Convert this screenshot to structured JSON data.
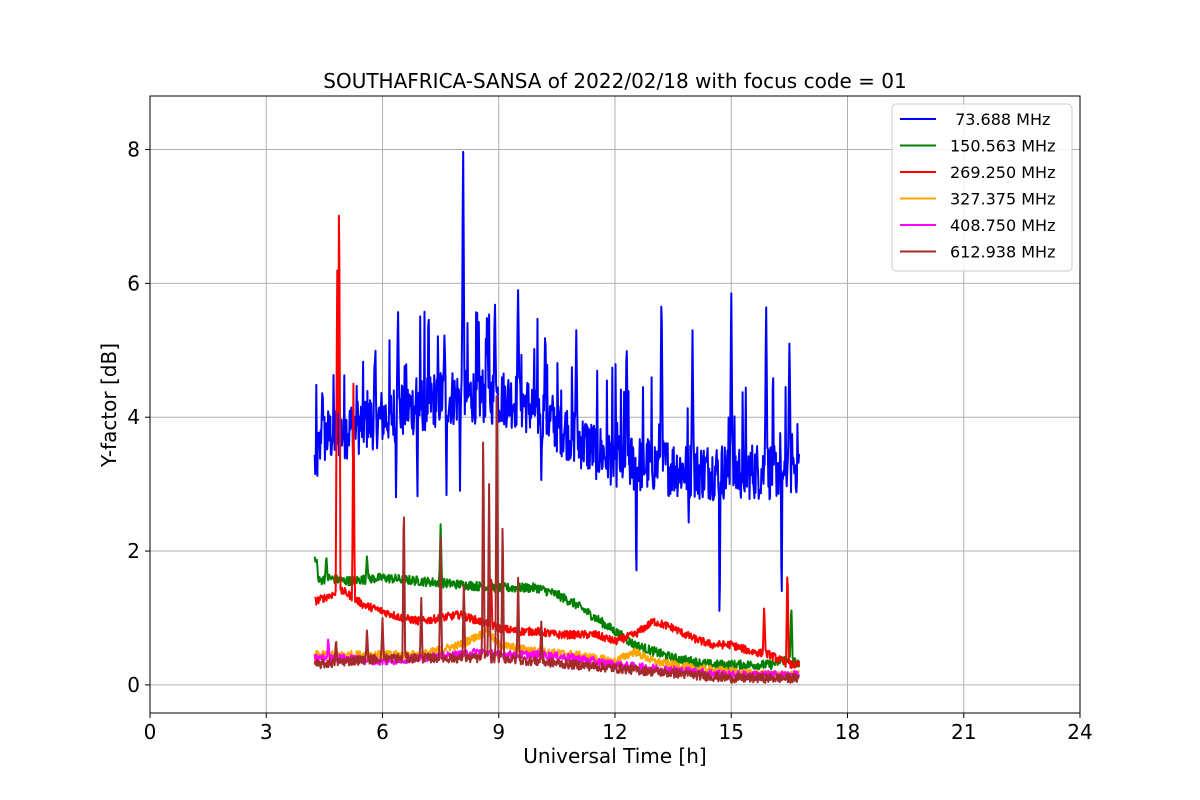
{
  "chart_data": {
    "type": "line",
    "title": "SOUTHAFRICA-SANSA of 2022/02/18 with focus code = 01",
    "xlabel": "Universal Time [h]",
    "ylabel": "Y-factor [dB]",
    "xlim": [
      0,
      24
    ],
    "ylim": [
      -0.42,
      8.8
    ],
    "xticks": [
      0,
      3,
      6,
      9,
      12,
      15,
      18,
      21,
      24
    ],
    "xtick_labels": [
      "0",
      "3",
      "6",
      "9",
      "12",
      "15",
      "18",
      "21",
      "24"
    ],
    "yticks": [
      0,
      2,
      4,
      6,
      8
    ],
    "ytick_labels": [
      "0",
      "2",
      "4",
      "6",
      "8"
    ],
    "grid": true,
    "legend_position": "top-right",
    "series": [
      {
        "name": " 73.688 MHz",
        "color": "#0000ff",
        "x": [
          4.25,
          4.5,
          5.0,
          5.5,
          6.0,
          6.5,
          7.0,
          7.5,
          8.0,
          8.5,
          9.0,
          9.5,
          10.0,
          10.5,
          11.0,
          11.5,
          12.0,
          12.5,
          13.0,
          13.5,
          14.0,
          14.5,
          15.0,
          15.5,
          16.0,
          16.5,
          16.75
        ],
        "y": [
          3.3,
          3.7,
          3.8,
          3.9,
          4.0,
          4.1,
          4.2,
          4.3,
          4.3,
          4.35,
          4.3,
          4.25,
          4.1,
          3.9,
          3.7,
          3.5,
          3.4,
          3.3,
          3.3,
          3.25,
          3.2,
          3.2,
          3.2,
          3.2,
          3.2,
          3.25,
          3.3
        ],
        "spikes": [
          [
            4.45,
            4.5
          ],
          [
            5.8,
            5.0
          ],
          [
            6.4,
            5.7
          ],
          [
            6.9,
            5.6
          ],
          [
            7.6,
            5.3
          ],
          [
            8.08,
            8.35
          ],
          [
            8.7,
            5.7
          ],
          [
            8.9,
            5.8
          ],
          [
            9.5,
            5.9
          ],
          [
            10.2,
            5.4
          ],
          [
            11.0,
            5.3
          ],
          [
            12.3,
            5.3
          ],
          [
            13.2,
            6.1
          ],
          [
            14.0,
            5.3
          ],
          [
            15.0,
            5.85
          ],
          [
            15.9,
            5.85
          ],
          [
            16.5,
            5.1
          ]
        ],
        "dips": [
          [
            6.35,
            2.6
          ],
          [
            6.9,
            2.6
          ],
          [
            7.65,
            2.6
          ],
          [
            8.0,
            2.9
          ],
          [
            10.1,
            2.9
          ],
          [
            12.55,
            1.1
          ],
          [
            13.9,
            2.3
          ],
          [
            14.7,
            0.3
          ],
          [
            16.3,
            0.7
          ]
        ]
      },
      {
        "name": "150.563 MHz",
        "color": "#008000",
        "x": [
          4.25,
          4.35,
          4.6,
          5.0,
          6.0,
          7.0,
          8.0,
          9.0,
          10.0,
          10.5,
          11.0,
          11.5,
          12.0,
          12.5,
          13.0,
          13.5,
          14.0,
          14.5,
          15.0,
          15.5,
          16.0,
          16.5,
          16.75
        ],
        "y": [
          1.9,
          1.55,
          1.6,
          1.55,
          1.6,
          1.55,
          1.5,
          1.45,
          1.45,
          1.35,
          1.2,
          1.0,
          0.8,
          0.6,
          0.5,
          0.4,
          0.35,
          0.3,
          0.3,
          0.3,
          0.3,
          0.4,
          0.3
        ],
        "spikes": [
          [
            4.3,
            1.9
          ],
          [
            4.55,
            1.95
          ],
          [
            5.6,
            1.95
          ],
          [
            7.5,
            2.4
          ],
          [
            16.55,
            1.25
          ]
        ],
        "dips": []
      },
      {
        "name": "269.250 MHz",
        "color": "#ff0000",
        "x": [
          4.25,
          4.5,
          4.7,
          5.0,
          5.5,
          6.0,
          6.5,
          7.0,
          7.5,
          8.0,
          8.5,
          9.0,
          9.5,
          10.0,
          10.5,
          11.0,
          11.5,
          12.0,
          12.5,
          13.0,
          13.5,
          14.0,
          14.5,
          15.0,
          15.5,
          16.0,
          16.5,
          16.75
        ],
        "y": [
          1.25,
          1.3,
          1.35,
          1.4,
          1.2,
          1.1,
          1.0,
          0.95,
          1.0,
          1.05,
          0.95,
          0.85,
          0.8,
          0.8,
          0.75,
          0.75,
          0.75,
          0.65,
          0.75,
          0.95,
          0.85,
          0.7,
          0.6,
          0.6,
          0.5,
          0.45,
          0.3,
          0.3
        ],
        "spikes": [
          [
            4.83,
            6.7
          ],
          [
            4.88,
            7.95
          ],
          [
            5.25,
            4.5
          ],
          [
            8.8,
            1.7
          ],
          [
            15.85,
            1.2
          ],
          [
            16.45,
            1.85
          ]
        ],
        "dips": []
      },
      {
        "name": "327.375 MHz",
        "color": "#ffa500",
        "x": [
          4.25,
          5.0,
          6.0,
          7.0,
          8.0,
          8.7,
          9.0,
          10.0,
          11.0,
          12.0,
          12.5,
          13.0,
          13.5,
          14.0,
          15.0,
          16.0,
          16.75
        ],
        "y": [
          0.45,
          0.45,
          0.45,
          0.45,
          0.6,
          0.8,
          0.6,
          0.5,
          0.45,
          0.35,
          0.5,
          0.35,
          0.3,
          0.25,
          0.2,
          0.15,
          0.15
        ],
        "spikes": [
          [
            8.7,
            0.85
          ]
        ],
        "dips": []
      },
      {
        "name": "408.750 MHz",
        "color": "#ff00ff",
        "x": [
          4.25,
          5.0,
          6.0,
          7.0,
          8.0,
          8.5,
          9.0,
          10.0,
          11.0,
          12.0,
          13.0,
          14.0,
          15.0,
          16.0,
          16.75
        ],
        "y": [
          0.4,
          0.4,
          0.35,
          0.4,
          0.45,
          0.5,
          0.45,
          0.45,
          0.4,
          0.3,
          0.25,
          0.2,
          0.15,
          0.15,
          0.15
        ],
        "spikes": [
          [
            4.6,
            0.7
          ]
        ],
        "dips": []
      },
      {
        "name": "612.938 MHz",
        "color": "#a52a2a",
        "x": [
          4.25,
          5.0,
          6.0,
          7.0,
          8.0,
          9.0,
          10.0,
          11.0,
          12.0,
          13.0,
          14.0,
          15.0,
          16.0,
          16.75
        ],
        "y": [
          0.3,
          0.35,
          0.4,
          0.4,
          0.4,
          0.4,
          0.35,
          0.3,
          0.25,
          0.2,
          0.15,
          0.1,
          0.1,
          0.1
        ],
        "spikes": [
          [
            4.8,
            0.7
          ],
          [
            5.6,
            0.85
          ],
          [
            6.0,
            1.0
          ],
          [
            6.55,
            2.9
          ],
          [
            7.0,
            1.3
          ],
          [
            7.5,
            2.2
          ],
          [
            8.1,
            1.6
          ],
          [
            8.6,
            3.9
          ],
          [
            8.75,
            3.0
          ],
          [
            8.95,
            5.05
          ],
          [
            9.1,
            2.5
          ],
          [
            9.5,
            1.6
          ],
          [
            10.1,
            1.0
          ]
        ],
        "dips": []
      }
    ]
  }
}
